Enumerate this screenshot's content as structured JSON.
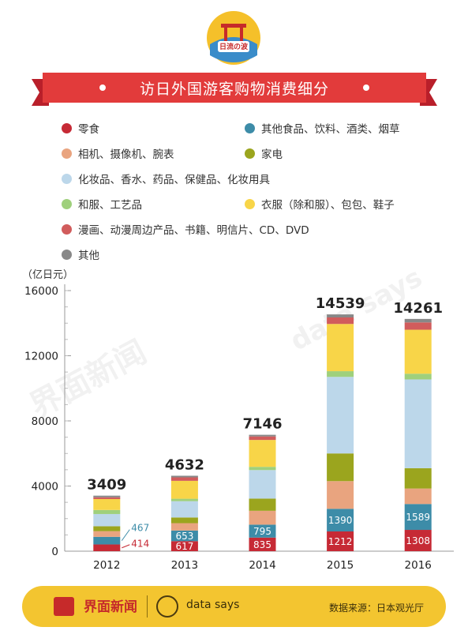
{
  "badge": {
    "text": "日流の波"
  },
  "header": {
    "title": "访日外国游客购物消费细分"
  },
  "legend": [
    {
      "name": "零食",
      "color": "#c62a35"
    },
    {
      "name": "其他食品、饮料、酒类、烟草",
      "color": "#3d8ca8"
    },
    {
      "name": "相机、摄像机、腕表",
      "color": "#e9a47f"
    },
    {
      "name": "家电",
      "color": "#9ba51e"
    },
    {
      "name": "化妆品、香水、药品、保健品、化妆用具",
      "color": "#bcd7ea"
    },
    {
      "name": "和服、工艺品",
      "color": "#9fd07c"
    },
    {
      "name": "衣服（除和服）、包包、鞋子",
      "color": "#f8d548"
    },
    {
      "name": "漫画、动漫周边产品、书籍、明信片、CD、DVD",
      "color": "#d15c5c"
    },
    {
      "name": "其他",
      "color": "#888888"
    }
  ],
  "watermark": {
    "brand": "界面新闻",
    "ds": "data says"
  },
  "chart_data": {
    "type": "bar",
    "stacked": true,
    "unit_label": "（亿日元）",
    "categories": [
      "2012",
      "2013",
      "2014",
      "2015",
      "2016"
    ],
    "ylim": [
      0,
      16000
    ],
    "yticks": [
      0,
      4000,
      8000,
      12000,
      16000
    ],
    "totals": [
      3409,
      4632,
      7146,
      14539,
      14261
    ],
    "series": [
      {
        "name": "零食",
        "color": "#c62a35",
        "values": [
          414,
          617,
          835,
          1212,
          1308
        ],
        "labels": [
          "414",
          "617",
          "835",
          "1212",
          "1308"
        ]
      },
      {
        "name": "其他食品、饮料、酒类、烟草",
        "color": "#3d8ca8",
        "values": [
          467,
          653,
          795,
          1390,
          1589
        ],
        "labels": [
          "467",
          "653",
          "795",
          "1390",
          "1589"
        ]
      },
      {
        "name": "相机、摄像机、腕表",
        "color": "#e9a47f",
        "values": [
          350,
          450,
          850,
          1700,
          950
        ]
      },
      {
        "name": "家电",
        "color": "#9ba51e",
        "values": [
          300,
          350,
          750,
          1700,
          1250
        ]
      },
      {
        "name": "化妆品、香水、药品、保健品、化妆用具",
        "color": "#bcd7ea",
        "values": [
          750,
          1000,
          1750,
          4700,
          5450
        ]
      },
      {
        "name": "和服、工艺品",
        "color": "#9fd07c",
        "values": [
          250,
          150,
          200,
          350,
          350
        ]
      },
      {
        "name": "衣服（除和服）、包包、鞋子",
        "color": "#f8d548",
        "values": [
          670,
          1100,
          1650,
          2900,
          2700
        ]
      },
      {
        "name": "漫画、动漫周边产品、书籍、明信片、CD、DVD",
        "color": "#d15c5c",
        "values": [
          108,
          212,
          216,
          400,
          450
        ]
      },
      {
        "name": "其他",
        "color": "#888888",
        "values": [
          100,
          100,
          100,
          187,
          214
        ]
      }
    ]
  },
  "footer": {
    "brand": "界面新闻",
    "ds": "data says",
    "source": "数据来源：日本观光厅"
  }
}
